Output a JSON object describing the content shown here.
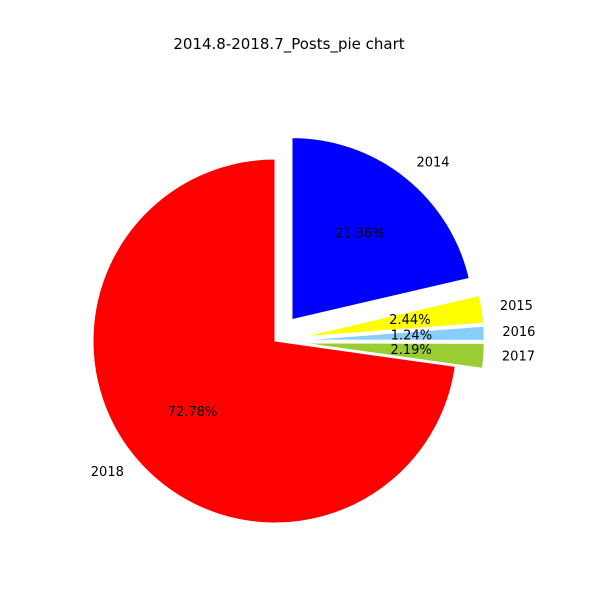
{
  "chart_data": {
    "type": "pie",
    "title": "2014.8-2018.7_Posts_pie chart",
    "startangle": 90,
    "direction": "clockwise",
    "slices": [
      {
        "label": "2014",
        "value": 21.36,
        "pct_text": "21.36%",
        "color": "#0000ff",
        "explode": 0.15
      },
      {
        "label": "2015",
        "value": 2.44,
        "pct_text": "2.44%",
        "color": "#ffff00",
        "explode": 0.15
      },
      {
        "label": "2016",
        "value": 1.24,
        "pct_text": "1.24%",
        "color": "#87cefa",
        "explode": 0.15
      },
      {
        "label": "2017",
        "value": 2.19,
        "pct_text": "2.19%",
        "color": "#9acd32",
        "explode": 0.15
      },
      {
        "label": "2018",
        "value": 72.78,
        "pct_text": "72.78%",
        "color": "#ff0000",
        "explode": 0.0
      }
    ]
  }
}
